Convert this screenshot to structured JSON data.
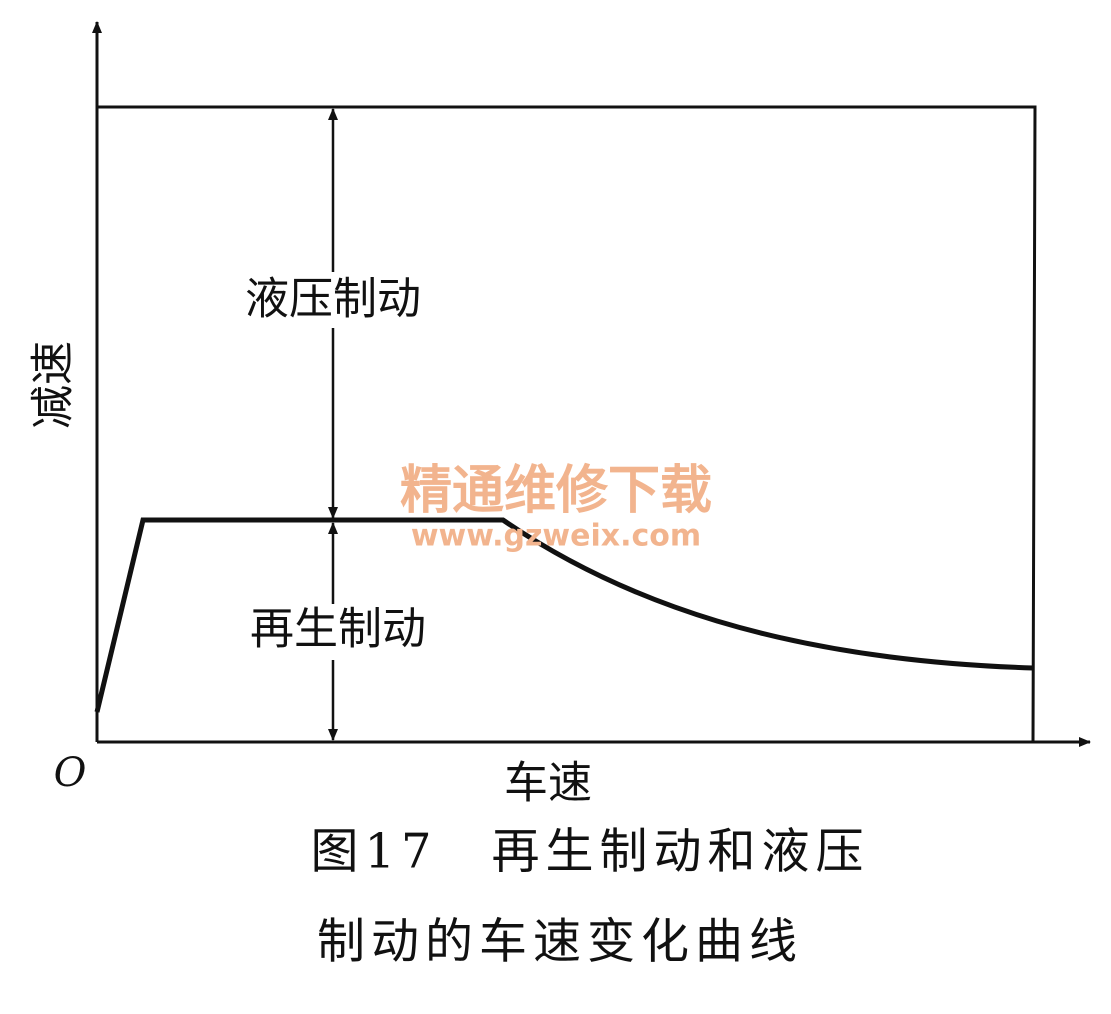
{
  "axes": {
    "y_label": "减速",
    "x_label": "车速",
    "origin": "O"
  },
  "regions": [
    {
      "label": "液压制动"
    },
    {
      "label": "再生制动"
    }
  ],
  "caption": {
    "lines": [
      "图17　再生制动和液压",
      "制动的车速变化曲线"
    ]
  },
  "watermark": {
    "title": "精通维修下载",
    "url": "www.gzweix.com"
  }
}
